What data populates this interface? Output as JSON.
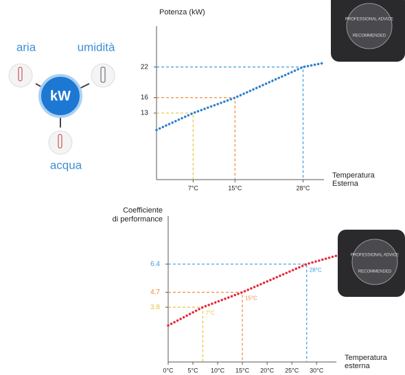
{
  "diagram": {
    "inputs": [
      "aria",
      "umidità",
      "acqua"
    ],
    "center": "kW"
  },
  "badge": [
    "PROFESSIONAL ADVICE",
    "RECOMMENDED"
  ],
  "chart_data": [
    {
      "type": "line",
      "title": "Potenza (kW)",
      "xlabel": [
        "Temperatura",
        "Esterna"
      ],
      "xlim": [
        0,
        32
      ],
      "ylim": [
        0,
        30
      ],
      "xticks": [
        {
          "value": 7,
          "label": "7°C"
        },
        {
          "value": 15,
          "label": "15°C"
        },
        {
          "value": 28,
          "label": "28°C"
        }
      ],
      "yticks": [
        13,
        16,
        22
      ],
      "series": [
        {
          "name": "Potenza",
          "color": "#2f7fd0",
          "x": [
            0,
            7,
            15,
            28,
            32
          ],
          "values": [
            9.7,
            13,
            16,
            22,
            22.8
          ]
        }
      ],
      "guides": {
        "x": [
          7,
          15,
          28
        ],
        "values": [
          13,
          16,
          22
        ],
        "colors": [
          "#e8c23a",
          "#f08a3a",
          "#3a9ae0"
        ]
      }
    },
    {
      "type": "line",
      "ylabel": [
        "Coefficiente",
        "di performance"
      ],
      "xlabel": [
        "Temperatura",
        "esterna"
      ],
      "xlim": [
        0,
        34
      ],
      "ylim": [
        0.5,
        9.3
      ],
      "xticks": [
        {
          "value": 0,
          "label": "0°C"
        },
        {
          "value": 5,
          "label": "5°C"
        },
        {
          "value": 10,
          "label": "10°C"
        },
        {
          "value": 15,
          "label": "15°C"
        },
        {
          "value": 20,
          "label": "20°C"
        },
        {
          "value": 25,
          "label": "25°C"
        },
        {
          "value": 30,
          "label": "30°C"
        }
      ],
      "yticks": [
        3.8,
        4.7,
        6.4
      ],
      "ytick_colors": [
        "#e8c23a",
        "#f08a3a",
        "#3a9ae0"
      ],
      "series": [
        {
          "name": "COP",
          "color": "#e8283a",
          "x": [
            0,
            7,
            15,
            28,
            34
          ],
          "values": [
            2.7,
            3.8,
            4.7,
            6.4,
            6.9
          ]
        }
      ],
      "guides": {
        "x": [
          7,
          15,
          28
        ],
        "values": [
          3.8,
          4.7,
          6.4
        ],
        "colors": [
          "#e8c23a",
          "#f08a3a",
          "#3a9ae0"
        ],
        "labels": [
          "7°C",
          "15°C",
          "28°C"
        ]
      }
    }
  ]
}
